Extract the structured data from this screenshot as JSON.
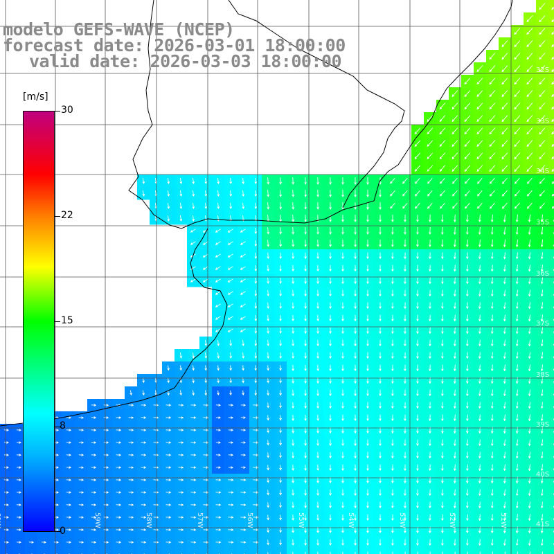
{
  "titles": {
    "model": "modelo GEFS-WAVE (NCEP)",
    "forecast": "forecast date: 2026-03-01 18:00:00",
    "valid": "valid date: 2026-03-03 18:00:00"
  },
  "colorbar": {
    "unit": "[m/s]",
    "ticks": [
      "30",
      "22",
      "15",
      "8",
      "0"
    ],
    "stops": [
      "#0000ff",
      "#00b4ff",
      "#00ffff",
      "#00ff00",
      "#ffff00",
      "#ff7f00",
      "#ff0000",
      "#c0007f"
    ]
  },
  "grid": {
    "lon_labels": [
      "61W",
      "60W",
      "59W",
      "58W",
      "57W",
      "56W",
      "55W",
      "54W",
      "53W",
      "52W",
      "51W"
    ],
    "lat_labels": [
      "32S",
      "33S",
      "34S",
      "35S",
      "36S",
      "37S",
      "38S",
      "39S",
      "40S",
      "41S"
    ]
  },
  "colors": {
    "coast": "#000000",
    "grid": "#555555",
    "arrow": "#ffffff",
    "land": "#ffffff",
    "title": "#8a8a8a"
  }
}
